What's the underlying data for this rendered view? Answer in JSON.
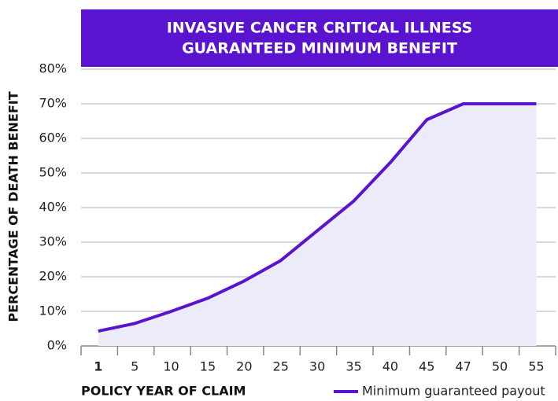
{
  "chart_data": {
    "type": "line",
    "title": [
      "INVASIVE CANCER CRITICAL ILLNESS",
      "GUARANTEED MINIMUM BENEFIT"
    ],
    "xlabel": "POLICY YEAR OF CLAIM",
    "ylabel": "PERCENTAGE OF DEATH BENEFIT",
    "categories": [
      "1",
      "5",
      "10",
      "15",
      "20",
      "25",
      "30",
      "35",
      "40",
      "45",
      "47",
      "50",
      "55"
    ],
    "series": [
      {
        "name": "Minimum guaranteed payout",
        "color": "#5a14cf",
        "values": [
          4.3,
          6.5,
          10,
          13.8,
          18.8,
          24.7,
          33.3,
          41.9,
          53,
          65.4,
          70,
          70,
          70
        ]
      }
    ],
    "ylim": [
      0,
      80
    ],
    "yticks": [
      {
        "value": 0,
        "label": "0%"
      },
      {
        "value": 10,
        "label": "10%"
      },
      {
        "value": 20,
        "label": "20%"
      },
      {
        "value": 30,
        "label": "30%"
      },
      {
        "value": 40,
        "label": "40%"
      },
      {
        "value": 50,
        "label": "50%"
      },
      {
        "value": 60,
        "label": "60%"
      },
      {
        "value": 70,
        "label": "70%"
      },
      {
        "value": 80,
        "label": "80%"
      }
    ],
    "grid": true,
    "fill_color": "#ecebfa",
    "legend": "bottom right"
  }
}
